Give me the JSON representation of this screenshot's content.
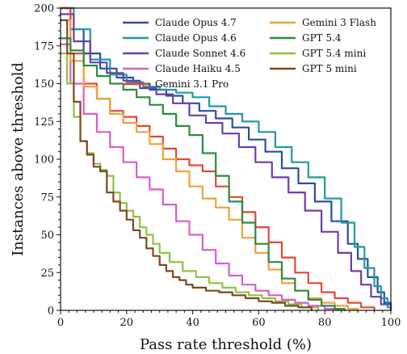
{
  "chart_data": {
    "type": "line",
    "xlabel": "Pass rate threshold (%)",
    "ylabel": "Instances above threshold",
    "xlim": [
      0,
      100
    ],
    "ylim": [
      0,
      200
    ],
    "xticks": [
      0,
      20,
      40,
      60,
      80,
      100
    ],
    "yticks": [
      0,
      25,
      50,
      75,
      100,
      125,
      150,
      175,
      200
    ],
    "grid": false,
    "legend_position": "top-right",
    "series": [
      {
        "name": "Claude Opus 4.7",
        "color": "#2b4ea2",
        "points": [
          [
            0,
            200
          ],
          [
            3,
            186
          ],
          [
            7,
            170
          ],
          [
            12,
            160
          ],
          [
            17,
            154
          ],
          [
            22,
            150
          ],
          [
            27,
            146
          ],
          [
            32,
            142
          ],
          [
            37,
            137
          ],
          [
            42,
            132
          ],
          [
            47,
            127
          ],
          [
            52,
            121
          ],
          [
            57,
            113
          ],
          [
            62,
            105
          ],
          [
            67,
            94
          ],
          [
            72,
            84
          ],
          [
            77,
            72
          ],
          [
            82,
            59
          ],
          [
            87,
            44
          ],
          [
            90,
            34
          ],
          [
            93,
            22
          ],
          [
            96,
            12
          ],
          [
            98,
            5
          ],
          [
            100,
            0
          ]
        ]
      },
      {
        "name": "Claude Opus 4.6",
        "color": "#1f9a9e",
        "points": [
          [
            0,
            200
          ],
          [
            4,
            186
          ],
          [
            9,
            166
          ],
          [
            15,
            156
          ],
          [
            20,
            151
          ],
          [
            25,
            148
          ],
          [
            30,
            146
          ],
          [
            35,
            144
          ],
          [
            40,
            141
          ],
          [
            45,
            135
          ],
          [
            50,
            130
          ],
          [
            55,
            125
          ],
          [
            60,
            118
          ],
          [
            65,
            108
          ],
          [
            70,
            98
          ],
          [
            75,
            88
          ],
          [
            80,
            74
          ],
          [
            85,
            58
          ],
          [
            89,
            42
          ],
          [
            92,
            28
          ],
          [
            95,
            16
          ],
          [
            97,
            8
          ],
          [
            99,
            2
          ],
          [
            100,
            0
          ]
        ]
      },
      {
        "name": "Claude Sonnet 4.6",
        "color": "#6b3fa8",
        "points": [
          [
            0,
            196
          ],
          [
            4,
            178
          ],
          [
            9,
            164
          ],
          [
            14,
            157
          ],
          [
            19,
            152
          ],
          [
            24,
            147
          ],
          [
            29,
            143
          ],
          [
            34,
            137
          ],
          [
            39,
            129
          ],
          [
            44,
            124
          ],
          [
            49,
            117
          ],
          [
            54,
            108
          ],
          [
            59,
            98
          ],
          [
            64,
            88
          ],
          [
            69,
            78
          ],
          [
            74,
            66
          ],
          [
            79,
            52
          ],
          [
            84,
            38
          ],
          [
            88,
            26
          ],
          [
            91,
            17
          ],
          [
            94,
            9
          ],
          [
            97,
            4
          ],
          [
            100,
            0
          ]
        ]
      },
      {
        "name": "Claude Haiku 4.5",
        "color": "#d65fc7",
        "points": [
          [
            0,
            176
          ],
          [
            3,
            150
          ],
          [
            7,
            130
          ],
          [
            11,
            118
          ],
          [
            15,
            108
          ],
          [
            19,
            98
          ],
          [
            23,
            88
          ],
          [
            27,
            80
          ],
          [
            31,
            70
          ],
          [
            35,
            59
          ],
          [
            39,
            50
          ],
          [
            43,
            40
          ],
          [
            47,
            31
          ],
          [
            51,
            23
          ],
          [
            55,
            17
          ],
          [
            59,
            13
          ],
          [
            63,
            10
          ],
          [
            67,
            7
          ],
          [
            71,
            5
          ],
          [
            75,
            3
          ],
          [
            80,
            1
          ],
          [
            84,
            0
          ]
        ]
      },
      {
        "name": "Gemini 3.1 Pro",
        "color": "#e04a35",
        "points": [
          [
            0,
            200
          ],
          [
            3,
            170
          ],
          [
            7,
            150
          ],
          [
            11,
            140
          ],
          [
            15,
            132
          ],
          [
            19,
            128
          ],
          [
            23,
            122
          ],
          [
            27,
            115
          ],
          [
            31,
            107
          ],
          [
            35,
            100
          ],
          [
            39,
            96
          ],
          [
            43,
            92
          ],
          [
            47,
            82
          ],
          [
            51,
            75
          ],
          [
            55,
            65
          ],
          [
            59,
            55
          ],
          [
            63,
            45
          ],
          [
            67,
            35
          ],
          [
            71,
            25
          ],
          [
            75,
            18
          ],
          [
            79,
            12
          ],
          [
            83,
            8
          ],
          [
            87,
            5
          ],
          [
            91,
            2
          ],
          [
            95,
            0
          ]
        ]
      },
      {
        "name": "Gemini 3 Flash",
        "color": "#f2a03c",
        "points": [
          [
            0,
            192
          ],
          [
            3,
            165
          ],
          [
            7,
            148
          ],
          [
            11,
            140
          ],
          [
            15,
            130
          ],
          [
            19,
            124
          ],
          [
            23,
            118
          ],
          [
            27,
            110
          ],
          [
            31,
            100
          ],
          [
            35,
            92
          ],
          [
            39,
            82
          ],
          [
            43,
            74
          ],
          [
            47,
            68
          ],
          [
            51,
            60
          ],
          [
            55,
            48
          ],
          [
            59,
            38
          ],
          [
            63,
            27
          ],
          [
            67,
            18
          ],
          [
            71,
            13
          ],
          [
            75,
            8
          ],
          [
            79,
            5
          ],
          [
            83,
            3
          ],
          [
            87,
            1
          ],
          [
            90,
            0
          ]
        ]
      },
      {
        "name": "GPT 5.4",
        "color": "#2f8a3e",
        "points": [
          [
            0,
            180
          ],
          [
            3,
            172
          ],
          [
            7,
            162
          ],
          [
            11,
            155
          ],
          [
            15,
            150
          ],
          [
            19,
            146
          ],
          [
            23,
            141
          ],
          [
            27,
            136
          ],
          [
            31,
            130
          ],
          [
            35,
            122
          ],
          [
            39,
            116
          ],
          [
            43,
            104
          ],
          [
            47,
            89
          ],
          [
            51,
            72
          ],
          [
            55,
            58
          ],
          [
            59,
            44
          ],
          [
            63,
            32
          ],
          [
            67,
            21
          ],
          [
            71,
            13
          ],
          [
            75,
            7
          ],
          [
            79,
            3
          ],
          [
            83,
            1
          ],
          [
            86,
            0
          ]
        ]
      },
      {
        "name": "GPT 5.4 mini",
        "color": "#8fc33d",
        "points": [
          [
            0,
            170
          ],
          [
            2,
            150
          ],
          [
            4,
            128
          ],
          [
            6,
            112
          ],
          [
            8,
            104
          ],
          [
            10,
            97
          ],
          [
            12,
            93
          ],
          [
            14,
            89
          ],
          [
            16,
            78
          ],
          [
            18,
            71
          ],
          [
            20,
            66
          ],
          [
            22,
            62
          ],
          [
            24,
            55
          ],
          [
            26,
            50
          ],
          [
            28,
            44
          ],
          [
            30,
            38
          ],
          [
            33,
            32
          ],
          [
            37,
            26
          ],
          [
            41,
            22
          ],
          [
            45,
            18
          ],
          [
            49,
            15
          ],
          [
            53,
            12
          ],
          [
            57,
            10
          ],
          [
            61,
            8
          ],
          [
            65,
            6
          ],
          [
            69,
            4
          ],
          [
            73,
            2
          ],
          [
            78,
            0
          ]
        ]
      },
      {
        "name": "GPT 5 mini",
        "color": "#7a4a22",
        "points": [
          [
            0,
            192
          ],
          [
            2,
            170
          ],
          [
            4,
            138
          ],
          [
            6,
            112
          ],
          [
            8,
            103
          ],
          [
            10,
            95
          ],
          [
            12,
            92
          ],
          [
            14,
            78
          ],
          [
            16,
            72
          ],
          [
            18,
            66
          ],
          [
            20,
            60
          ],
          [
            22,
            53
          ],
          [
            24,
            48
          ],
          [
            26,
            41
          ],
          [
            28,
            36
          ],
          [
            30,
            30
          ],
          [
            32,
            26
          ],
          [
            34,
            22
          ],
          [
            36,
            20
          ],
          [
            38,
            17
          ],
          [
            40,
            15
          ],
          [
            44,
            13
          ],
          [
            48,
            12
          ],
          [
            52,
            10
          ],
          [
            56,
            8
          ],
          [
            60,
            6
          ],
          [
            64,
            5
          ],
          [
            68,
            3
          ],
          [
            72,
            2
          ],
          [
            76,
            0
          ]
        ]
      }
    ]
  }
}
